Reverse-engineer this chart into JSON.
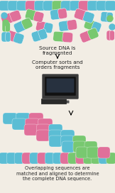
{
  "bg_color": "#f2ede4",
  "title1": "Source DNA is\nfragmented",
  "title2": "Computer sorts and\norders fragments",
  "title3": "Overlapping sequences are\nmatched and aligned to determine\nthe complete DNA sequence.",
  "colors": {
    "blue": "#5bbdd4",
    "pink": "#e0709a",
    "green": "#78c870",
    "light_blue": "#88ccee"
  },
  "figsize": [
    1.62,
    2.72
  ],
  "dpi": 100
}
